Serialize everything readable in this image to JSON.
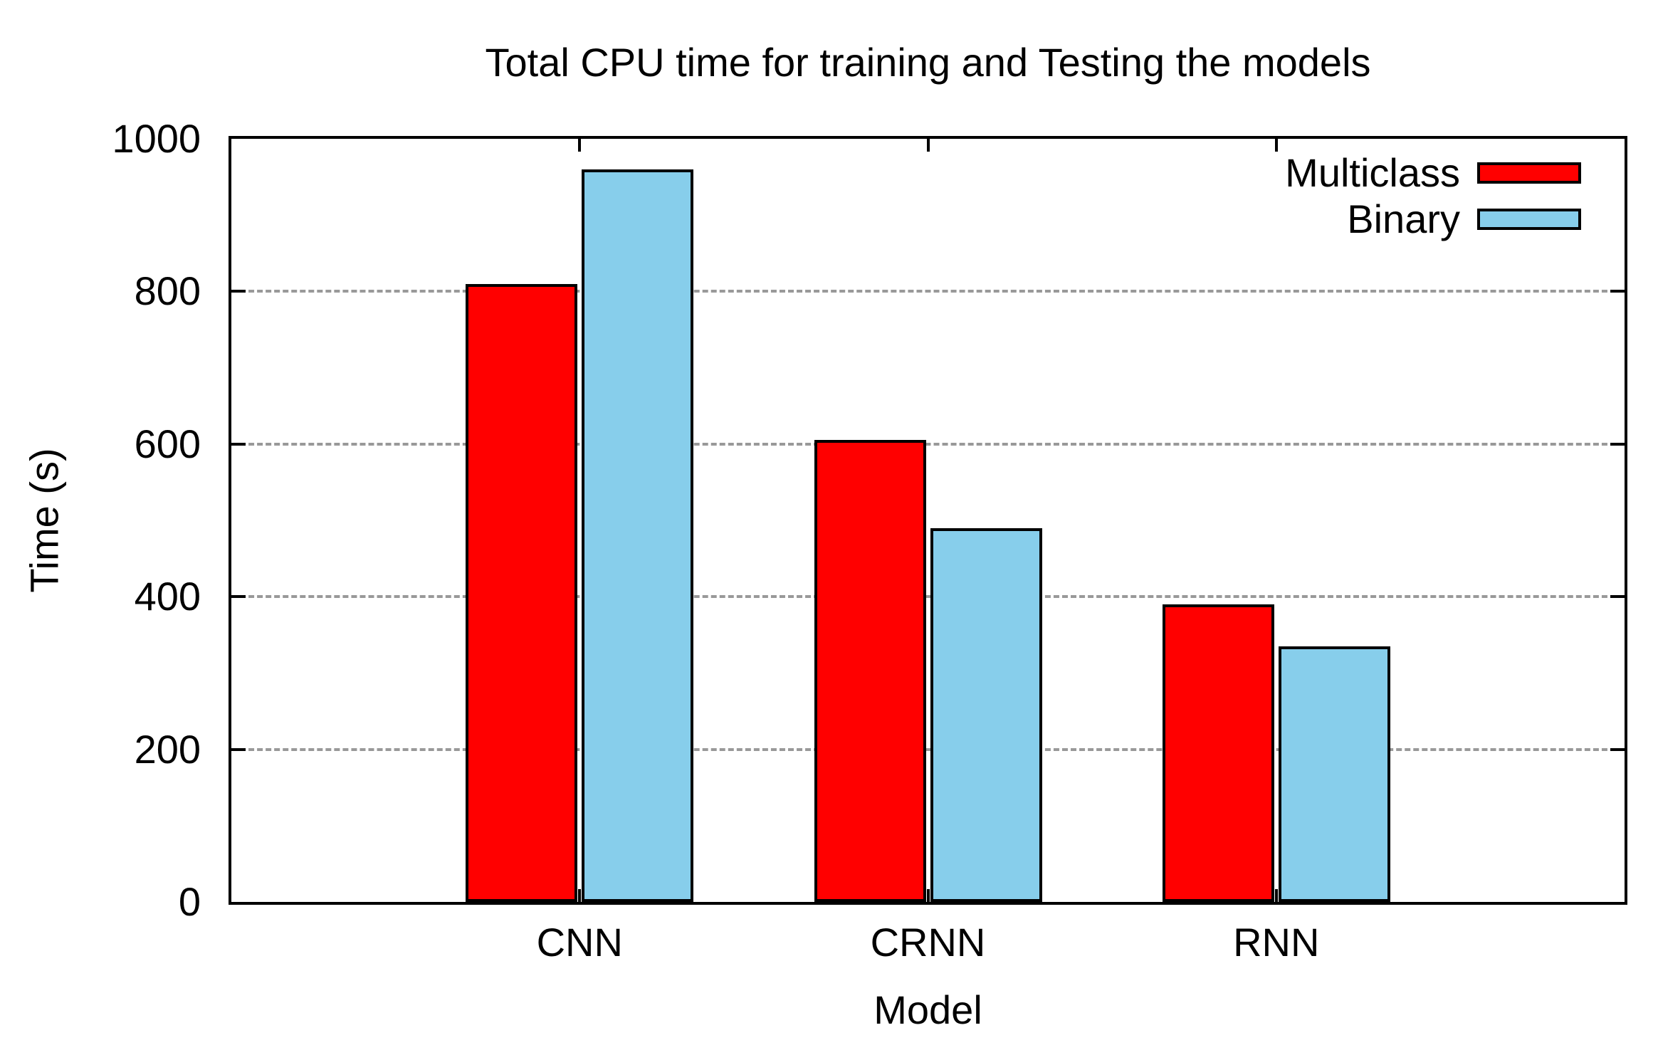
{
  "chart_data": {
    "type": "bar",
    "title": "Total CPU time for training and Testing the models",
    "xlabel": "Model",
    "ylabel": "Time (s)",
    "categories": [
      "CNN",
      "CRNN",
      "RNN"
    ],
    "series": [
      {
        "name": "Multiclass",
        "color": "#ff0000",
        "values": [
          810,
          605,
          390
        ]
      },
      {
        "name": "Binary",
        "color": "#87ceeb",
        "values": [
          960,
          490,
          335
        ]
      }
    ],
    "ylim": [
      0,
      1000
    ],
    "yticks": [
      0,
      200,
      400,
      600,
      800,
      1000
    ],
    "grid": {
      "horizontal": true,
      "style": "dashed",
      "color": "#999999"
    },
    "legend_position": "top-right-inside",
    "axis_color": "#000000",
    "bar_border_color": "#000000",
    "background_color": "#ffffff"
  }
}
